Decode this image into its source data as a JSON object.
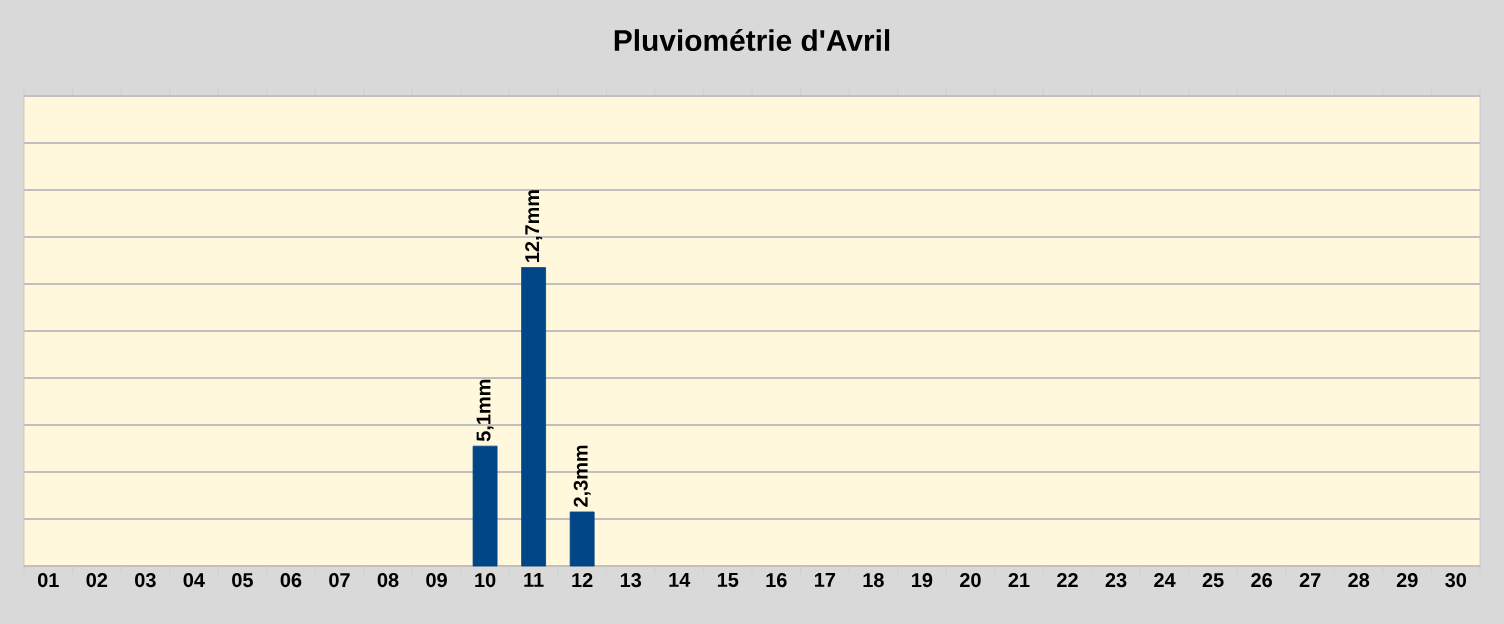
{
  "chart_data": {
    "type": "bar",
    "title": "Pluviométrie d'Avril",
    "categories": [
      "01",
      "02",
      "03",
      "04",
      "05",
      "06",
      "07",
      "08",
      "09",
      "10",
      "11",
      "12",
      "13",
      "14",
      "15",
      "16",
      "17",
      "18",
      "19",
      "20",
      "21",
      "22",
      "23",
      "24",
      "25",
      "26",
      "27",
      "28",
      "29",
      "30"
    ],
    "values": [
      null,
      null,
      null,
      null,
      null,
      null,
      null,
      null,
      null,
      5.1,
      12.7,
      2.3,
      null,
      null,
      null,
      null,
      null,
      null,
      null,
      null,
      null,
      null,
      null,
      null,
      null,
      null,
      null,
      null,
      null,
      null
    ],
    "value_labels": [
      null,
      null,
      null,
      null,
      null,
      null,
      null,
      null,
      null,
      "5,1mm",
      "12,7mm",
      "2,3mm",
      null,
      null,
      null,
      null,
      null,
      null,
      null,
      null,
      null,
      null,
      null,
      null,
      null,
      null,
      null,
      null,
      null,
      null
    ],
    "color": "#004586",
    "ylim": [
      0,
      20
    ],
    "yticks": [
      {
        "value": 0,
        "label": null
      },
      {
        "value": 2,
        "label": null
      },
      {
        "value": 4,
        "label": null
      },
      {
        "value": 6,
        "label": null
      },
      {
        "value": 8,
        "label": null
      },
      {
        "value": 10,
        "label": null
      },
      {
        "value": 12,
        "label": null
      },
      {
        "value": 14,
        "label": null
      },
      {
        "value": 16,
        "label": null
      },
      {
        "value": 18,
        "label": null
      },
      {
        "value": 20,
        "label": null
      }
    ],
    "grid": "y",
    "tick_labels": "x"
  }
}
